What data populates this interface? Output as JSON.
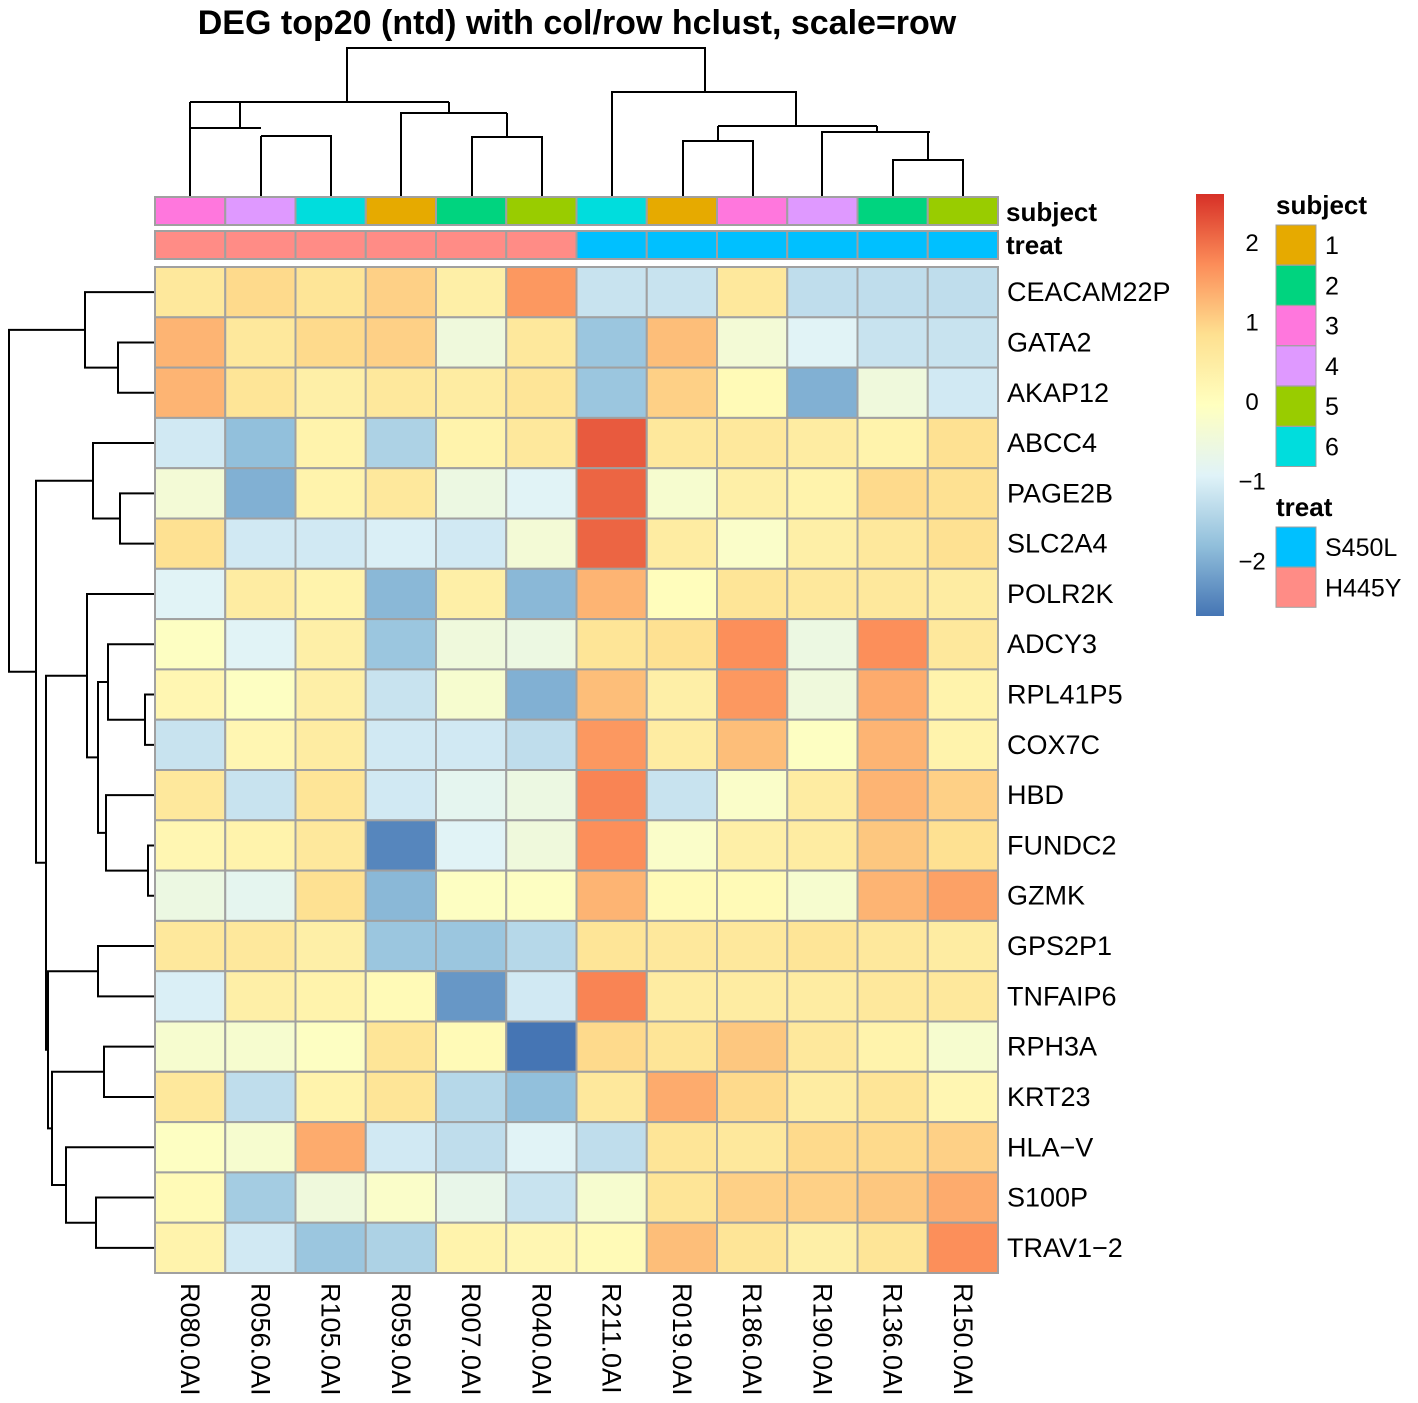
{
  "chart_data": {
    "type": "heatmap",
    "title": "DEG top20 (ntd) with col/row hclust, scale=row",
    "columns": [
      "R080.0AI",
      "R056.0AI",
      "R105.0AI",
      "R059.0AI",
      "R007.0AI",
      "R040.0AI",
      "R211.0AI",
      "R019.0AI",
      "R186.0AI",
      "R190.0AI",
      "R136.0AI",
      "R150.0AI"
    ],
    "rows": [
      "CEACAM22P",
      "GATA2",
      "AKAP12",
      "ABCC4",
      "PAGE2B",
      "SLC2A4",
      "POLR2K",
      "ADCY3",
      "RPL41P5",
      "COX7C",
      "HBD",
      "FUNDC2",
      "GZMK",
      "GPS2P1",
      "TNFAIP6",
      "RPH3A",
      "KRT23",
      "HLA−V",
      "S100P",
      "TRAV1−2"
    ],
    "values": [
      [
        0.6,
        0.9,
        0.7,
        1.0,
        0.4,
        1.6,
        -1.2,
        -1.2,
        0.6,
        -1.3,
        -1.3,
        -1.3
      ],
      [
        1.3,
        0.6,
        0.9,
        1.0,
        -0.5,
        0.6,
        -1.7,
        1.2,
        -0.4,
        -0.9,
        -1.2,
        -1.2
      ],
      [
        1.3,
        0.7,
        0.4,
        0.6,
        0.5,
        0.7,
        -1.7,
        1.0,
        0.1,
        -2.0,
        -0.5,
        -1.1
      ],
      [
        -1.1,
        -1.8,
        0.3,
        -1.5,
        0.3,
        0.6,
        2.2,
        0.6,
        0.6,
        0.5,
        0.3,
        0.8
      ],
      [
        -0.4,
        -2.0,
        0.3,
        0.6,
        -0.6,
        -0.9,
        2.1,
        -0.3,
        0.4,
        0.3,
        0.9,
        0.8
      ],
      [
        0.8,
        -1.1,
        -1.1,
        -1.0,
        -1.1,
        -0.4,
        2.1,
        0.5,
        -0.2,
        0.4,
        0.6,
        0.8
      ],
      [
        -0.9,
        0.5,
        0.3,
        -1.9,
        0.4,
        -1.9,
        1.3,
        0.0,
        0.7,
        0.6,
        0.6,
        0.5
      ],
      [
        -0.1,
        -0.9,
        0.4,
        -1.7,
        -0.5,
        -0.6,
        0.7,
        0.8,
        1.7,
        -0.6,
        1.7,
        0.6
      ],
      [
        0.2,
        -0.1,
        0.4,
        -1.2,
        -0.3,
        -2.0,
        1.2,
        0.4,
        1.6,
        -0.5,
        1.4,
        0.3
      ],
      [
        -1.2,
        0.2,
        0.5,
        -1.1,
        -1.1,
        -1.3,
        1.6,
        0.5,
        1.2,
        -0.1,
        1.3,
        0.3
      ],
      [
        0.6,
        -1.2,
        0.7,
        -1.1,
        -0.8,
        -0.6,
        1.8,
        -1.2,
        -0.2,
        0.5,
        1.3,
        1.0
      ],
      [
        0.2,
        0.3,
        0.6,
        -2.5,
        -0.9,
        -0.5,
        1.7,
        -0.2,
        0.4,
        0.5,
        1.1,
        0.8
      ],
      [
        -0.6,
        -0.8,
        0.8,
        -1.9,
        -0.1,
        -0.1,
        1.3,
        0.1,
        0.1,
        -0.3,
        1.3,
        1.5
      ],
      [
        0.6,
        0.6,
        0.4,
        -1.7,
        -1.7,
        -1.4,
        0.7,
        0.6,
        0.6,
        0.7,
        0.6,
        0.5
      ],
      [
        -1.0,
        0.4,
        0.3,
        0.1,
        -2.3,
        -1.1,
        1.8,
        0.5,
        0.5,
        0.5,
        0.6,
        0.6
      ],
      [
        -0.3,
        -0.3,
        -0.1,
        0.7,
        0.1,
        -2.7,
        0.9,
        0.7,
        1.1,
        0.6,
        0.3,
        -0.3
      ],
      [
        0.6,
        -1.3,
        0.3,
        0.7,
        -1.4,
        -1.8,
        0.6,
        1.4,
        0.9,
        0.5,
        0.7,
        0.2
      ],
      [
        -0.1,
        -0.3,
        1.4,
        -1.1,
        -1.3,
        -0.9,
        -1.3,
        0.7,
        0.6,
        0.9,
        0.9,
        1.0
      ],
      [
        0.1,
        -1.6,
        -0.5,
        -0.2,
        -0.7,
        -1.2,
        -0.3,
        0.7,
        1.0,
        1.0,
        1.1,
        1.4
      ],
      [
        0.3,
        -1.1,
        -1.7,
        -1.5,
        0.3,
        0.2,
        0.1,
        1.2,
        0.7,
        0.4,
        0.7,
        1.7
      ]
    ],
    "color_scale": {
      "min": -2.7,
      "max": 2.6,
      "ticks": [
        "2",
        "1",
        "0",
        "−1",
        "−2"
      ],
      "tick_values": [
        2,
        1,
        0,
        -1,
        -2
      ],
      "colors": [
        "#4575b4",
        "#91bfdb",
        "#e0f3f8",
        "#ffffbf",
        "#fee090",
        "#fc8d59",
        "#d73027"
      ]
    },
    "annotations": {
      "subject": {
        "label": "subject",
        "values": [
          "3",
          "4",
          "6",
          "1",
          "2",
          "5",
          "6",
          "1",
          "3",
          "4",
          "2",
          "5"
        ]
      },
      "treat": {
        "label": "treat",
        "values": [
          "H445Y",
          "H445Y",
          "H445Y",
          "H445Y",
          "H445Y",
          "H445Y",
          "S450L",
          "S450L",
          "S450L",
          "S450L",
          "S450L",
          "S450L"
        ]
      }
    },
    "legend": {
      "subject": {
        "title": "subject",
        "items": [
          {
            "label": "1",
            "color": "#e6aa00"
          },
          {
            "label": "2",
            "color": "#00d47f"
          },
          {
            "label": "3",
            "color": "#ff77dd"
          },
          {
            "label": "4",
            "color": "#df99ff"
          },
          {
            "label": "5",
            "color": "#99cc00"
          },
          {
            "label": "6",
            "color": "#00dddd"
          }
        ]
      },
      "treat": {
        "title": "treat",
        "items": [
          {
            "label": "S450L",
            "color": "#00c0ff"
          },
          {
            "label": "H445Y",
            "color": "#ff8c86"
          }
        ]
      }
    }
  }
}
